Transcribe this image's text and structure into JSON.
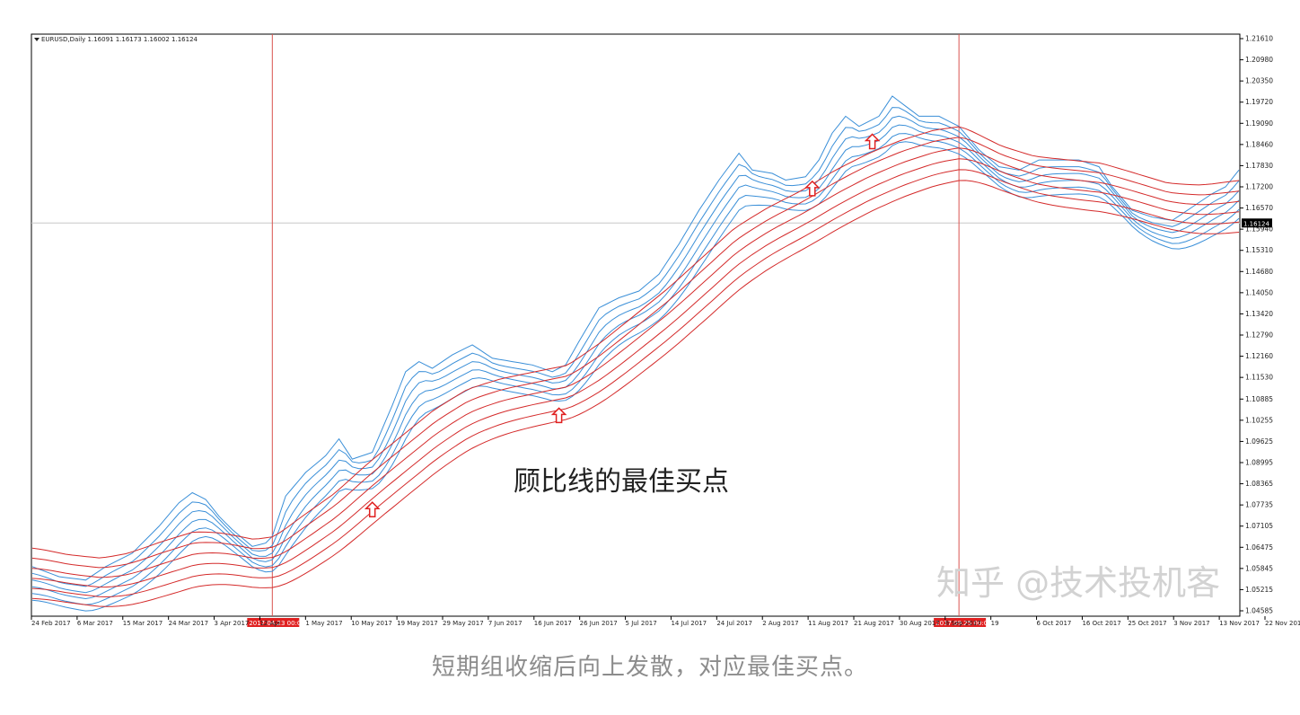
{
  "chart_data": {
    "type": "line",
    "symbol_info": "EURUSD,Daily  1.16091 1.16173 1.16002 1.16124",
    "ylim": [
      1.04585,
      1.2161
    ],
    "y_ticks": [
      "1.21610",
      "1.20980",
      "1.20350",
      "1.19720",
      "1.19090",
      "1.18460",
      "1.17830",
      "1.17200",
      "1.16570",
      "1.15940",
      "1.15310",
      "1.14680",
      "1.14050",
      "1.13420",
      "1.12790",
      "1.12160",
      "1.11530",
      "1.10885",
      "1.10255",
      "1.09625",
      "1.08995",
      "1.08365",
      "1.07735",
      "1.07105",
      "1.06475",
      "1.05845",
      "1.05215",
      "1.04585"
    ],
    "x_ticks": [
      "24 Feb 2017",
      "6 Mar 2017",
      "15 Mar 2017",
      "24 Mar 2017",
      "3 Apr 2017",
      "12 Apr",
      "1 May 2017",
      "10 May 2017",
      "19 May 2017",
      "29 May 2017",
      "7 Jun 2017",
      "16 Jun 2017",
      "26 Jun 2017",
      "5 Jul 2017",
      "14 Jul 2017",
      "24 Jul 2017",
      "2 Aug 2017",
      "11 Aug 2017",
      "21 Aug 2017",
      "30 Aug 2017",
      "8 Sep 2017",
      "19",
      "6 Oct 2017",
      "16 Oct 2017",
      "25 Oct 2017",
      "3 Nov 2017",
      "13 Nov 2017",
      "22 Nov 2017"
    ],
    "current_price": "1.16124",
    "current_price_value": 1.16124,
    "vertical_markers": [
      {
        "label": "2017.04.23 00:00",
        "x_index": 36
      },
      {
        "label": "2017.09.25 00:00",
        "x_index": 139
      }
    ],
    "n_bars": 182,
    "short_keypoints": [
      [
        0,
        1.059
      ],
      [
        4,
        1.056
      ],
      [
        8,
        1.055
      ],
      [
        11,
        1.059
      ],
      [
        15,
        1.063
      ],
      [
        19,
        1.071
      ],
      [
        22,
        1.078
      ],
      [
        24,
        1.081
      ],
      [
        26,
        1.079
      ],
      [
        28,
        1.074
      ],
      [
        30,
        1.07
      ],
      [
        33,
        1.065
      ],
      [
        35,
        1.066
      ],
      [
        36,
        1.068
      ],
      [
        38,
        1.08
      ],
      [
        41,
        1.087
      ],
      [
        44,
        1.092
      ],
      [
        46,
        1.097
      ],
      [
        48,
        1.091
      ],
      [
        51,
        1.093
      ],
      [
        54,
        1.107
      ],
      [
        56,
        1.117
      ],
      [
        58,
        1.12
      ],
      [
        60,
        1.118
      ],
      [
        63,
        1.122
      ],
      [
        66,
        1.125
      ],
      [
        69,
        1.121
      ],
      [
        72,
        1.12
      ],
      [
        75,
        1.119
      ],
      [
        78,
        1.117
      ],
      [
        80,
        1.119
      ],
      [
        82,
        1.126
      ],
      [
        85,
        1.136
      ],
      [
        88,
        1.139
      ],
      [
        91,
        1.141
      ],
      [
        94,
        1.146
      ],
      [
        97,
        1.155
      ],
      [
        100,
        1.165
      ],
      [
        103,
        1.174
      ],
      [
        106,
        1.182
      ],
      [
        108,
        1.177
      ],
      [
        111,
        1.176
      ],
      [
        113,
        1.174
      ],
      [
        116,
        1.175
      ],
      [
        118,
        1.18
      ],
      [
        120,
        1.188
      ],
      [
        122,
        1.193
      ],
      [
        124,
        1.19
      ],
      [
        127,
        1.193
      ],
      [
        129,
        1.199
      ],
      [
        131,
        1.196
      ],
      [
        133,
        1.193
      ],
      [
        136,
        1.193
      ],
      [
        139,
        1.19
      ],
      [
        142,
        1.183
      ],
      [
        145,
        1.178
      ],
      [
        148,
        1.177
      ],
      [
        151,
        1.18
      ],
      [
        154,
        1.18
      ],
      [
        157,
        1.18
      ],
      [
        160,
        1.178
      ],
      [
        162,
        1.172
      ],
      [
        165,
        1.165
      ],
      [
        168,
        1.163
      ],
      [
        171,
        1.162
      ],
      [
        174,
        1.166
      ],
      [
        177,
        1.17
      ],
      [
        179,
        1.172
      ],
      [
        181,
        1.177
      ]
    ],
    "long_keypoints": [
      [
        0,
        1.0645
      ],
      [
        5,
        1.0625
      ],
      [
        10,
        1.0615
      ],
      [
        14,
        1.063
      ],
      [
        19,
        1.0665
      ],
      [
        24,
        1.0695
      ],
      [
        28,
        1.069
      ],
      [
        33,
        1.067
      ],
      [
        36,
        1.068
      ],
      [
        40,
        1.074
      ],
      [
        45,
        1.081
      ],
      [
        50,
        1.09
      ],
      [
        55,
        1.098
      ],
      [
        60,
        1.106
      ],
      [
        65,
        1.112
      ],
      [
        70,
        1.115
      ],
      [
        75,
        1.117
      ],
      [
        80,
        1.119
      ],
      [
        85,
        1.126
      ],
      [
        90,
        1.134
      ],
      [
        95,
        1.142
      ],
      [
        100,
        1.151
      ],
      [
        105,
        1.16
      ],
      [
        110,
        1.166
      ],
      [
        115,
        1.171
      ],
      [
        120,
        1.177
      ],
      [
        125,
        1.182
      ],
      [
        130,
        1.186
      ],
      [
        135,
        1.189
      ],
      [
        139,
        1.19
      ],
      [
        145,
        1.184
      ],
      [
        150,
        1.181
      ],
      [
        155,
        1.18
      ],
      [
        160,
        1.179
      ],
      [
        165,
        1.176
      ],
      [
        170,
        1.173
      ],
      [
        175,
        1.1725
      ],
      [
        181,
        1.174
      ]
    ],
    "short_offsets": [
      0.0,
      0.002,
      0.004,
      0.006,
      0.008,
      0.01
    ],
    "long_offsets": [
      0.0,
      0.003,
      0.006,
      0.009,
      0.012,
      0.015
    ],
    "buy_arrows": [
      {
        "x_index": 51,
        "price": 1.076
      },
      {
        "x_index": 79,
        "price": 1.104
      },
      {
        "x_index": 117,
        "price": 1.1715
      },
      {
        "x_index": 126,
        "price": 1.1855
      }
    ],
    "colors": {
      "short": "#3a8fd8",
      "long": "#d42a2a",
      "marker": "#d9534f",
      "arrow": "#e02020",
      "grid": "#c8c8c8"
    }
  },
  "annotation": "顾比线的最佳买点",
  "watermark": "知乎 @技术投机客",
  "caption": "短期组收缩后向上发散，对应最佳买点。"
}
